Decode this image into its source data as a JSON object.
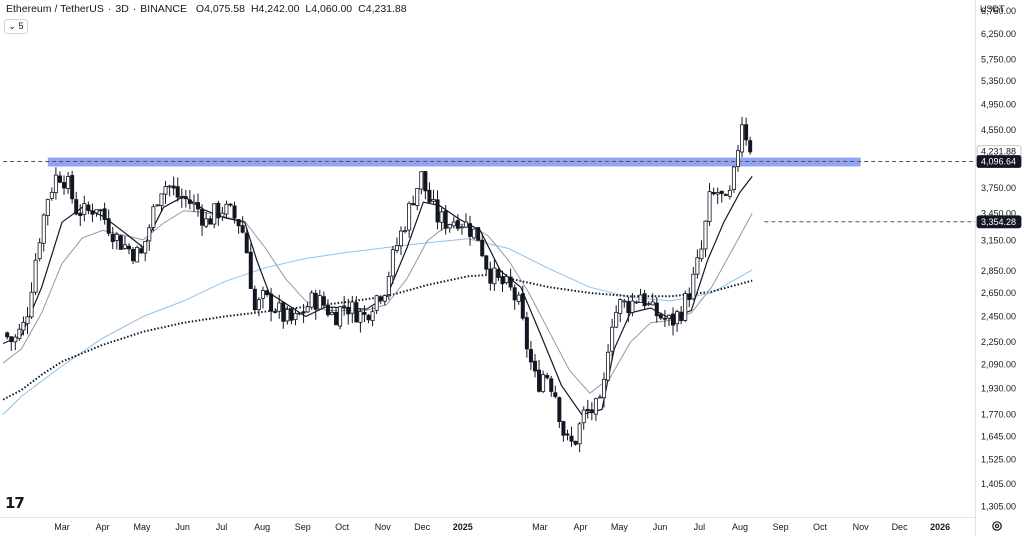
{
  "header": {
    "symbol": "Ethereum / TetherUS",
    "interval": "3D",
    "exchange": "BINANCE",
    "open_key": "O",
    "open": "4,075.58",
    "high_key": "H",
    "high": "4,242.00",
    "low_key": "L",
    "low": "4,060.00",
    "close_key": "C",
    "close": "4,231.88",
    "collapse_label": "5"
  },
  "price_axis": {
    "unit": "USDT",
    "ticks": [
      6750,
      6250,
      5750,
      5350,
      4950,
      4550,
      3750,
      3450,
      3150,
      2850,
      2650,
      2450,
      2250,
      2090,
      1930,
      1770,
      1645,
      1525,
      1405,
      1305
    ],
    "tick_labels": [
      "6,750.00",
      "6,250.00",
      "5,750.00",
      "5,350.00",
      "4,950.00",
      "4,550.00",
      "3,750.00",
      "3,450.00",
      "3,150.00",
      "2,850.00",
      "2,650.00",
      "2,450.00",
      "2,250.00",
      "2,090.00",
      "1,930.00",
      "1,770.00",
      "1,645.00",
      "1,525.00",
      "1,405.00",
      "1,305.00"
    ],
    "scale": "log",
    "range": [
      1260,
      7000
    ],
    "badges": [
      {
        "value": 4231.88,
        "label": "4,231.88",
        "style": "plain"
      },
      {
        "value": 4096.64,
        "label": "4,096.64",
        "style": "dark"
      },
      {
        "value": 3354.28,
        "label": "3,354.28",
        "style": "dark"
      }
    ]
  },
  "time_axis": {
    "labels": [
      {
        "text": "Mar",
        "t": 0.0
      },
      {
        "text": "Apr",
        "t": 1.0
      },
      {
        "text": "May",
        "t": 1.97
      },
      {
        "text": "Jun",
        "t": 2.97
      },
      {
        "text": "Jul",
        "t": 3.93
      },
      {
        "text": "Aug",
        "t": 4.93
      },
      {
        "text": "Sep",
        "t": 5.93
      },
      {
        "text": "Oct",
        "t": 6.9
      },
      {
        "text": "Nov",
        "t": 7.9
      },
      {
        "text": "Dec",
        "t": 8.87
      },
      {
        "text": "2025",
        "t": 9.87,
        "bold": true
      },
      {
        "text": "Mar",
        "t": 11.77
      },
      {
        "text": "Apr",
        "t": 12.77
      },
      {
        "text": "May",
        "t": 13.73
      },
      {
        "text": "Jun",
        "t": 14.73
      },
      {
        "text": "Jul",
        "t": 15.7
      },
      {
        "text": "Aug",
        "t": 16.7
      },
      {
        "text": "Sep",
        "t": 17.7
      },
      {
        "text": "Oct",
        "t": 18.67
      },
      {
        "text": "Nov",
        "t": 19.67
      },
      {
        "text": "Dec",
        "t": 20.63
      },
      {
        "text": "2026",
        "t": 21.63,
        "bold": true
      }
    ]
  },
  "logo_text": "17",
  "chart_data": {
    "type": "candlestick",
    "x_unit": "months since Mar 2024",
    "x_range": [
      -1.45,
      22.25
    ],
    "y_scale": "log",
    "y_range": [
      1260,
      7000
    ],
    "colors": {
      "up_body": "#ffffff",
      "down_body": "#131722",
      "wick": "#131722",
      "ma_fast": "#131722",
      "ma_mid": "#9598a1",
      "ma_slow_blue": "#8fc3e8",
      "ma_dotted": "#131722",
      "zone": "#7b93f0",
      "level_line": "#555555"
    },
    "anchors": [
      [
        -1.45,
        2320
      ],
      [
        -1.2,
        2250
      ],
      [
        -0.9,
        2400
      ],
      [
        -0.6,
        3100
      ],
      [
        -0.35,
        3650
      ],
      [
        -0.1,
        3950
      ],
      [
        0.1,
        3850
      ],
      [
        0.35,
        3500
      ],
      [
        0.6,
        3450
      ],
      [
        0.85,
        3550
      ],
      [
        1.1,
        3350
      ],
      [
        1.4,
        3150
      ],
      [
        1.7,
        3050
      ],
      [
        1.95,
        3000
      ],
      [
        2.15,
        3300
      ],
      [
        2.4,
        3750
      ],
      [
        2.6,
        3800
      ],
      [
        2.85,
        3650
      ],
      [
        3.1,
        3600
      ],
      [
        3.35,
        3500
      ],
      [
        3.55,
        3350
      ],
      [
        3.75,
        3450
      ],
      [
        3.95,
        3500
      ],
      [
        4.15,
        3450
      ],
      [
        4.35,
        3350
      ],
      [
        4.5,
        3200
      ],
      [
        4.6,
        2900
      ],
      [
        4.75,
        2500
      ],
      [
        4.95,
        2600
      ],
      [
        5.2,
        2550
      ],
      [
        5.45,
        2450
      ],
      [
        5.7,
        2400
      ],
      [
        5.95,
        2500
      ],
      [
        6.2,
        2600
      ],
      [
        6.45,
        2550
      ],
      [
        6.7,
        2450
      ],
      [
        6.95,
        2550
      ],
      [
        7.2,
        2500
      ],
      [
        7.45,
        2450
      ],
      [
        7.7,
        2600
      ],
      [
        7.95,
        2700
      ],
      [
        8.2,
        3050
      ],
      [
        8.45,
        3350
      ],
      [
        8.65,
        3650
      ],
      [
        8.85,
        3900
      ],
      [
        9.0,
        3650
      ],
      [
        9.25,
        3400
      ],
      [
        9.5,
        3350
      ],
      [
        9.75,
        3400
      ],
      [
        10.0,
        3300
      ],
      [
        10.25,
        3200
      ],
      [
        10.5,
        2850
      ],
      [
        10.75,
        2750
      ],
      [
        11.0,
        2700
      ],
      [
        11.25,
        2550
      ],
      [
        11.5,
        2150
      ],
      [
        11.7,
        1950
      ],
      [
        11.9,
        2050
      ],
      [
        12.15,
        1900
      ],
      [
        12.4,
        1620
      ],
      [
        12.6,
        1600
      ],
      [
        12.85,
        1770
      ],
      [
        13.1,
        1800
      ],
      [
        13.3,
        1820
      ],
      [
        13.5,
        2400
      ],
      [
        13.75,
        2550
      ],
      [
        14.0,
        2550
      ],
      [
        14.25,
        2650
      ],
      [
        14.5,
        2500
      ],
      [
        14.75,
        2450
      ],
      [
        15.0,
        2400
      ],
      [
        15.25,
        2500
      ],
      [
        15.5,
        2700
      ],
      [
        15.75,
        3050
      ],
      [
        15.95,
        3600
      ],
      [
        16.15,
        3700
      ],
      [
        16.35,
        3550
      ],
      [
        16.5,
        3700
      ],
      [
        16.62,
        4200
      ],
      [
        16.75,
        4700
      ],
      [
        16.88,
        4420
      ],
      [
        17.0,
        4231.88
      ]
    ],
    "ma_fast": [
      [
        -1.45,
        2240
      ],
      [
        -1.0,
        2300
      ],
      [
        -0.5,
        2700
      ],
      [
        0,
        3350
      ],
      [
        0.5,
        3520
      ],
      [
        1.0,
        3420
      ],
      [
        1.5,
        3250
      ],
      [
        2.0,
        3080
      ],
      [
        2.5,
        3520
      ],
      [
        3.0,
        3650
      ],
      [
        3.5,
        3490
      ],
      [
        4.0,
        3400
      ],
      [
        4.5,
        3350
      ],
      [
        4.8,
        2950
      ],
      [
        5.1,
        2650
      ],
      [
        5.5,
        2560
      ],
      [
        6.0,
        2450
      ],
      [
        6.5,
        2530
      ],
      [
        7.0,
        2520
      ],
      [
        7.5,
        2510
      ],
      [
        8.0,
        2620
      ],
      [
        8.5,
        3080
      ],
      [
        8.9,
        3580
      ],
      [
        9.3,
        3540
      ],
      [
        9.8,
        3380
      ],
      [
        10.3,
        3260
      ],
      [
        10.8,
        2850
      ],
      [
        11.3,
        2700
      ],
      [
        11.8,
        2300
      ],
      [
        12.3,
        1950
      ],
      [
        12.8,
        1770
      ],
      [
        13.3,
        1800
      ],
      [
        13.6,
        2200
      ],
      [
        14.0,
        2480
      ],
      [
        14.5,
        2520
      ],
      [
        15.0,
        2430
      ],
      [
        15.5,
        2500
      ],
      [
        15.9,
        2950
      ],
      [
        16.3,
        3350
      ],
      [
        16.7,
        3700
      ],
      [
        17.0,
        3900
      ]
    ],
    "ma_mid": [
      [
        -1.45,
        2100
      ],
      [
        -1.0,
        2200
      ],
      [
        -0.5,
        2480
      ],
      [
        0,
        2920
      ],
      [
        0.5,
        3180
      ],
      [
        1.0,
        3260
      ],
      [
        1.5,
        3210
      ],
      [
        2.0,
        3160
      ],
      [
        2.5,
        3340
      ],
      [
        3.0,
        3480
      ],
      [
        3.5,
        3460
      ],
      [
        4.0,
        3410
      ],
      [
        4.5,
        3360
      ],
      [
        5.0,
        3080
      ],
      [
        5.5,
        2780
      ],
      [
        6.0,
        2580
      ],
      [
        6.5,
        2500
      ],
      [
        7.0,
        2500
      ],
      [
        7.5,
        2500
      ],
      [
        8.0,
        2550
      ],
      [
        8.5,
        2780
      ],
      [
        9.0,
        3150
      ],
      [
        9.5,
        3320
      ],
      [
        10.0,
        3330
      ],
      [
        10.5,
        3200
      ],
      [
        11.0,
        2950
      ],
      [
        11.5,
        2650
      ],
      [
        12.0,
        2330
      ],
      [
        12.5,
        2050
      ],
      [
        13.0,
        1900
      ],
      [
        13.5,
        2000
      ],
      [
        14.0,
        2250
      ],
      [
        14.5,
        2400
      ],
      [
        15.0,
        2420
      ],
      [
        15.5,
        2480
      ],
      [
        16.0,
        2700
      ],
      [
        16.5,
        3050
      ],
      [
        17.0,
        3450
      ]
    ],
    "ma_slow": [
      [
        -1.45,
        1770
      ],
      [
        -1.0,
        1880
      ],
      [
        0,
        2080
      ],
      [
        1.0,
        2280
      ],
      [
        2.0,
        2450
      ],
      [
        3.0,
        2580
      ],
      [
        4.0,
        2750
      ],
      [
        5.0,
        2880
      ],
      [
        6.0,
        2970
      ],
      [
        7.0,
        3030
      ],
      [
        8.0,
        3080
      ],
      [
        9.0,
        3130
      ],
      [
        10.0,
        3170
      ],
      [
        11.0,
        3070
      ],
      [
        12.0,
        2870
      ],
      [
        13.0,
        2700
      ],
      [
        14.0,
        2610
      ],
      [
        15.0,
        2580
      ],
      [
        16.0,
        2650
      ],
      [
        17.0,
        2860
      ]
    ],
    "ma_dotted": [
      [
        -1.45,
        1860
      ],
      [
        -1.0,
        1920
      ],
      [
        -0.5,
        2020
      ],
      [
        0,
        2110
      ],
      [
        1.0,
        2230
      ],
      [
        2.0,
        2330
      ],
      [
        3.0,
        2400
      ],
      [
        4.0,
        2450
      ],
      [
        5.0,
        2490
      ],
      [
        6.0,
        2530
      ],
      [
        7.0,
        2570
      ],
      [
        8.0,
        2620
      ],
      [
        9.0,
        2720
      ],
      [
        10.0,
        2800
      ],
      [
        10.6,
        2815
      ],
      [
        11.0,
        2780
      ],
      [
        12.0,
        2700
      ],
      [
        13.0,
        2650
      ],
      [
        14.0,
        2620
      ],
      [
        15.0,
        2620
      ],
      [
        16.0,
        2660
      ],
      [
        17.0,
        2760
      ]
    ],
    "resistance_zone": {
      "low": 4030,
      "high": 4150,
      "t_start": -0.35,
      "t_end": 19.67
    },
    "level_lines": [
      {
        "value": 4096.64,
        "t_start": -1.45,
        "style": "dashed"
      },
      {
        "value": 3354.28,
        "t_start": 17.3,
        "style": "dashed"
      }
    ]
  }
}
